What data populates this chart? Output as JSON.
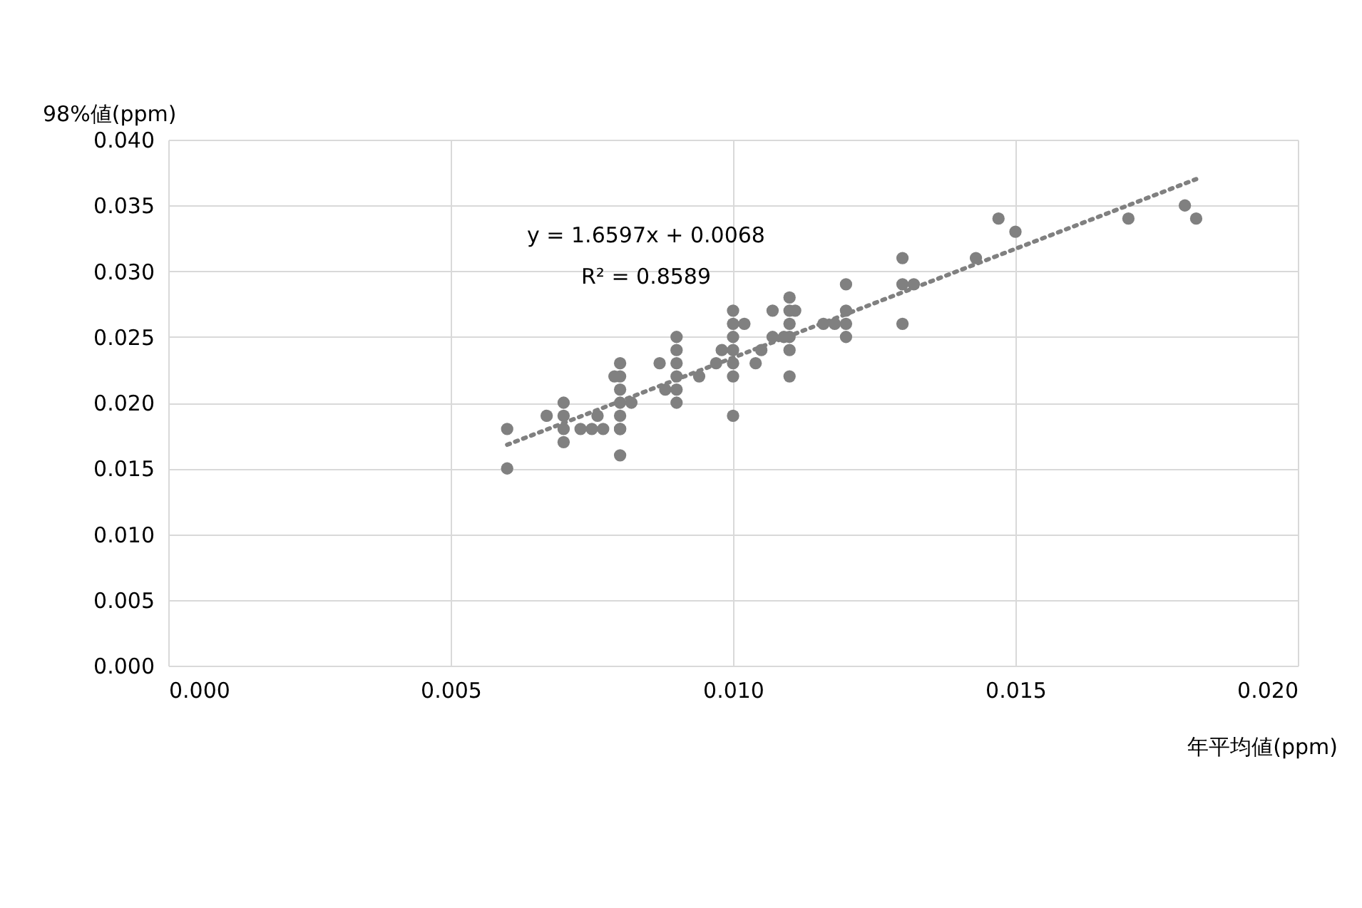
{
  "chart_data": {
    "type": "scatter",
    "xlabel": "年平均値(ppm)",
    "ylabel": "98%値(ppm)",
    "annotations": [
      "y = 1.6597x + 0.0068",
      "R² = 0.8589"
    ],
    "series": [
      {
        "color": "#808080",
        "marker": "circle",
        "x": [
          0.006,
          0.006,
          0.0067,
          0.007,
          0.007,
          0.007,
          0.007,
          0.0073,
          0.0075,
          0.0076,
          0.0077,
          0.0079,
          0.008,
          0.008,
          0.008,
          0.008,
          0.008,
          0.008,
          0.008,
          0.008,
          0.0082,
          0.0087,
          0.0088,
          0.009,
          0.009,
          0.009,
          0.009,
          0.009,
          0.009,
          0.0094,
          0.0097,
          0.0098,
          0.01,
          0.01,
          0.01,
          0.01,
          0.01,
          0.01,
          0.01,
          0.0102,
          0.0104,
          0.0105,
          0.0107,
          0.0107,
          0.0109,
          0.011,
          0.011,
          0.011,
          0.011,
          0.011,
          0.011,
          0.0111,
          0.0116,
          0.0118,
          0.012,
          0.012,
          0.012,
          0.012,
          0.013,
          0.013,
          0.013,
          0.0132,
          0.0143,
          0.0147,
          0.015,
          0.017,
          0.018,
          0.0182
        ],
        "values": [
          0.018,
          0.015,
          0.019,
          0.02,
          0.019,
          0.018,
          0.017,
          0.018,
          0.018,
          0.019,
          0.018,
          0.022,
          0.023,
          0.022,
          0.021,
          0.02,
          0.019,
          0.018,
          0.018,
          0.016,
          0.02,
          0.023,
          0.021,
          0.025,
          0.024,
          0.023,
          0.022,
          0.021,
          0.02,
          0.022,
          0.023,
          0.024,
          0.027,
          0.026,
          0.025,
          0.024,
          0.023,
          0.022,
          0.019,
          0.026,
          0.023,
          0.024,
          0.027,
          0.025,
          0.025,
          0.028,
          0.027,
          0.026,
          0.025,
          0.024,
          0.022,
          0.027,
          0.026,
          0.026,
          0.029,
          0.027,
          0.026,
          0.025,
          0.031,
          0.029,
          0.026,
          0.029,
          0.031,
          0.034,
          0.033,
          0.034,
          0.035,
          0.034
        ]
      },
      {
        "type": "line",
        "color": "#808080",
        "line_style": "dotted",
        "marker": "none",
        "x": [
          0.006,
          0.0182
        ],
        "values": [
          0.0168,
          0.037
        ]
      }
    ],
    "xlim": [
      0,
      0.02
    ],
    "ylim": [
      0,
      0.04
    ],
    "xticks": [
      {
        "value": 0,
        "label": "0.000"
      },
      {
        "value": 0.005,
        "label": "0.005"
      },
      {
        "value": 0.01,
        "label": "0.010"
      },
      {
        "value": 0.015,
        "label": "0.015"
      },
      {
        "value": 0.02,
        "label": "0.020"
      }
    ],
    "yticks": [
      {
        "value": 0,
        "label": "0.000"
      },
      {
        "value": 0.005,
        "label": "0.005"
      },
      {
        "value": 0.01,
        "label": "0.010"
      },
      {
        "value": 0.015,
        "label": "0.015"
      },
      {
        "value": 0.02,
        "label": "0.020"
      },
      {
        "value": 0.025,
        "label": "0.025"
      },
      {
        "value": 0.03,
        "label": "0.030"
      },
      {
        "value": 0.035,
        "label": "0.035"
      },
      {
        "value": 0.04,
        "label": "0.040"
      }
    ],
    "grid": true
  }
}
